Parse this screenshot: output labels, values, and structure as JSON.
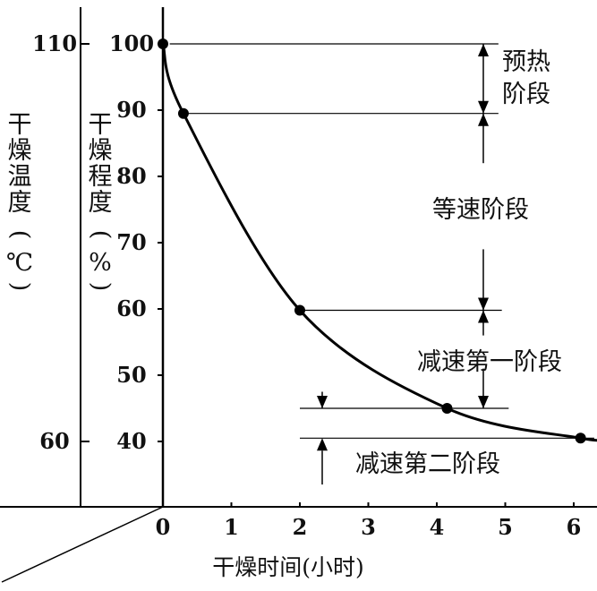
{
  "chart_data": {
    "type": "line",
    "title": "",
    "xlabel": "干燥时间(小时)",
    "ylabel_left": [
      "干",
      "燥",
      "温",
      "度",
      "(℃)"
    ],
    "ylabel_right": [
      "干",
      "燥",
      "程",
      "度",
      "(%)"
    ],
    "xlim": [
      0,
      6.5
    ],
    "ylim": [
      31,
      102
    ],
    "x_ticks": [
      "0",
      "1",
      "2",
      "3",
      "4",
      "5",
      "6"
    ],
    "y_ticks": [
      "40",
      "50",
      "60",
      "70",
      "80",
      "90",
      "100"
    ],
    "temp_ticks": [
      "110",
      "60"
    ],
    "temp_tick_positions": [
      100,
      40
    ],
    "series": [
      {
        "x": [
          0,
          0.3,
          2,
          4.15,
          6.1
        ],
        "y": [
          100,
          89.5,
          59.8,
          45,
          40.5
        ],
        "marker": "circle",
        "color": "#000000"
      }
    ],
    "stages": [
      {
        "label": "预热",
        "label2": "阶段",
        "from": 100,
        "to": 89.5
      },
      {
        "label": "等速阶段",
        "from": 89.5,
        "to": 59.8
      },
      {
        "label": "减速第一阶段",
        "from": 59.8,
        "to": 45
      },
      {
        "label": "减速第二阶段",
        "from": 45,
        "to": 40.5
      }
    ],
    "grid": false,
    "legend": "none"
  }
}
